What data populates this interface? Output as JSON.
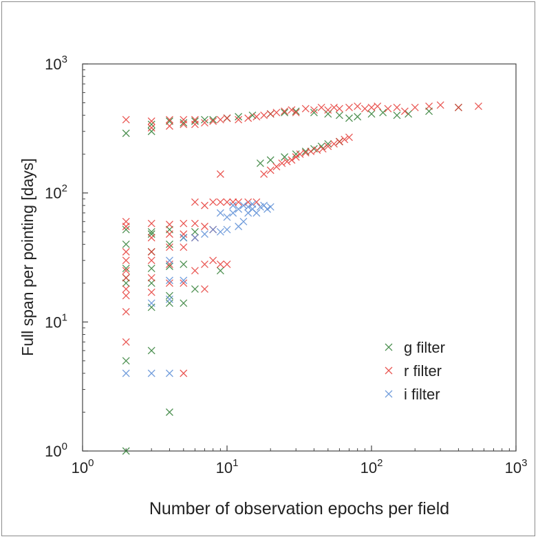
{
  "chart_data": {
    "type": "scatter",
    "xscale": "log",
    "yscale": "log",
    "xlim": [
      1,
      1000
    ],
    "ylim": [
      1,
      1000
    ],
    "xlabel": "Number of observation epochs per field",
    "ylabel": "Full span per pointing  [days]",
    "x_ticks": [
      {
        "value": 1,
        "base": "10",
        "exp": "0"
      },
      {
        "value": 10,
        "base": "10",
        "exp": "1"
      },
      {
        "value": 100,
        "base": "10",
        "exp": "2"
      },
      {
        "value": 1000,
        "base": "10",
        "exp": "3"
      }
    ],
    "y_ticks": [
      {
        "value": 1,
        "base": "10",
        "exp": "0"
      },
      {
        "value": 10,
        "base": "10",
        "exp": "1"
      },
      {
        "value": 100,
        "base": "10",
        "exp": "2"
      },
      {
        "value": 1000,
        "base": "10",
        "exp": "3"
      }
    ],
    "grid": false,
    "legend_position": "bottom-right",
    "marker": "x",
    "series": [
      {
        "name": "g filter",
        "color": "#2e7d32",
        "points": [
          [
            2,
            290
          ],
          [
            3,
            300
          ],
          [
            3,
            340
          ],
          [
            4,
            360
          ],
          [
            5,
            350
          ],
          [
            6,
            360
          ],
          [
            7,
            370
          ],
          [
            8,
            370
          ],
          [
            10,
            380
          ],
          [
            12,
            390
          ],
          [
            15,
            400
          ],
          [
            20,
            410
          ],
          [
            25,
            420
          ],
          [
            30,
            430
          ],
          [
            40,
            420
          ],
          [
            50,
            410
          ],
          [
            60,
            400
          ],
          [
            70,
            380
          ],
          [
            80,
            390
          ],
          [
            100,
            410
          ],
          [
            120,
            420
          ],
          [
            150,
            400
          ],
          [
            180,
            410
          ],
          [
            250,
            430
          ],
          [
            400,
            460
          ],
          [
            17,
            170
          ],
          [
            20,
            180
          ],
          [
            25,
            190
          ],
          [
            30,
            200
          ],
          [
            35,
            210
          ],
          [
            40,
            220
          ],
          [
            45,
            230
          ],
          [
            50,
            240
          ],
          [
            60,
            250
          ],
          [
            2,
            1
          ],
          [
            2,
            5
          ],
          [
            2,
            20
          ],
          [
            2,
            22
          ],
          [
            2,
            26
          ],
          [
            2,
            40
          ],
          [
            2,
            52
          ],
          [
            3,
            6
          ],
          [
            3,
            13
          ],
          [
            3,
            20
          ],
          [
            3,
            26
          ],
          [
            3,
            35
          ],
          [
            3,
            48
          ],
          [
            3,
            50
          ],
          [
            4,
            2
          ],
          [
            4,
            14
          ],
          [
            4,
            16
          ],
          [
            4,
            27
          ],
          [
            4,
            40
          ],
          [
            4,
            52
          ],
          [
            5,
            14
          ],
          [
            5,
            28
          ],
          [
            5,
            45
          ],
          [
            6,
            18
          ],
          [
            6,
            50
          ],
          [
            9,
            25
          ]
        ]
      },
      {
        "name": "r filter",
        "color": "#e53935",
        "points": [
          [
            2,
            370
          ],
          [
            3,
            320
          ],
          [
            3,
            360
          ],
          [
            4,
            330
          ],
          [
            4,
            370
          ],
          [
            5,
            340
          ],
          [
            5,
            370
          ],
          [
            6,
            340
          ],
          [
            6,
            370
          ],
          [
            7,
            350
          ],
          [
            8,
            360
          ],
          [
            9,
            370
          ],
          [
            10,
            380
          ],
          [
            12,
            370
          ],
          [
            14,
            380
          ],
          [
            16,
            390
          ],
          [
            18,
            400
          ],
          [
            20,
            410
          ],
          [
            22,
            420
          ],
          [
            25,
            430
          ],
          [
            28,
            440
          ],
          [
            30,
            420
          ],
          [
            35,
            450
          ],
          [
            40,
            440
          ],
          [
            45,
            460
          ],
          [
            50,
            440
          ],
          [
            55,
            460
          ],
          [
            60,
            450
          ],
          [
            70,
            460
          ],
          [
            80,
            470
          ],
          [
            90,
            450
          ],
          [
            100,
            460
          ],
          [
            110,
            470
          ],
          [
            130,
            450
          ],
          [
            150,
            460
          ],
          [
            170,
            430
          ],
          [
            200,
            460
          ],
          [
            250,
            470
          ],
          [
            300,
            480
          ],
          [
            400,
            460
          ],
          [
            550,
            470
          ],
          [
            18,
            140
          ],
          [
            20,
            150
          ],
          [
            22,
            160
          ],
          [
            24,
            170
          ],
          [
            26,
            175
          ],
          [
            28,
            180
          ],
          [
            30,
            190
          ],
          [
            32,
            200
          ],
          [
            35,
            205
          ],
          [
            38,
            210
          ],
          [
            42,
            215
          ],
          [
            46,
            220
          ],
          [
            50,
            230
          ],
          [
            55,
            240
          ],
          [
            60,
            250
          ],
          [
            65,
            260
          ],
          [
            70,
            270
          ],
          [
            9,
            140
          ],
          [
            2,
            7
          ],
          [
            2,
            12
          ],
          [
            2,
            16
          ],
          [
            2,
            18
          ],
          [
            2,
            22
          ],
          [
            2,
            25
          ],
          [
            2,
            30
          ],
          [
            2,
            35
          ],
          [
            2,
            55
          ],
          [
            2,
            60
          ],
          [
            3,
            17
          ],
          [
            3,
            22
          ],
          [
            3,
            30
          ],
          [
            3,
            35
          ],
          [
            3,
            45
          ],
          [
            3,
            58
          ],
          [
            4,
            20
          ],
          [
            4,
            28
          ],
          [
            4,
            38
          ],
          [
            4,
            48
          ],
          [
            4,
            57
          ],
          [
            5,
            4
          ],
          [
            5,
            20
          ],
          [
            5,
            38
          ],
          [
            5,
            48
          ],
          [
            5,
            58
          ],
          [
            6,
            25
          ],
          [
            6,
            45
          ],
          [
            6,
            58
          ],
          [
            6,
            85
          ],
          [
            7,
            18
          ],
          [
            7,
            28
          ],
          [
            7,
            55
          ],
          [
            7,
            80
          ],
          [
            8,
            30
          ],
          [
            8,
            52
          ],
          [
            8,
            85
          ],
          [
            9,
            28
          ],
          [
            9,
            85
          ],
          [
            10,
            28
          ],
          [
            10,
            85
          ],
          [
            11,
            85
          ],
          [
            12,
            85
          ],
          [
            14,
            85
          ],
          [
            16,
            85
          ]
        ]
      },
      {
        "name": "i filter",
        "color": "#5b8dd6",
        "points": [
          [
            2,
            4
          ],
          [
            3,
            4
          ],
          [
            3,
            14
          ],
          [
            4,
            4
          ],
          [
            4,
            15
          ],
          [
            4,
            21
          ],
          [
            4,
            30
          ],
          [
            5,
            21
          ],
          [
            5,
            45
          ],
          [
            6,
            45
          ],
          [
            7,
            48
          ],
          [
            8,
            52
          ],
          [
            9,
            50
          ],
          [
            9,
            70
          ],
          [
            10,
            52
          ],
          [
            10,
            65
          ],
          [
            11,
            70
          ],
          [
            11,
            80
          ],
          [
            12,
            55
          ],
          [
            12,
            75
          ],
          [
            13,
            60
          ],
          [
            13,
            80
          ],
          [
            14,
            70
          ],
          [
            14,
            78
          ],
          [
            15,
            75
          ],
          [
            15,
            82
          ],
          [
            16,
            70
          ],
          [
            17,
            78
          ],
          [
            18,
            80
          ],
          [
            19,
            75
          ],
          [
            20,
            78
          ]
        ]
      }
    ]
  }
}
